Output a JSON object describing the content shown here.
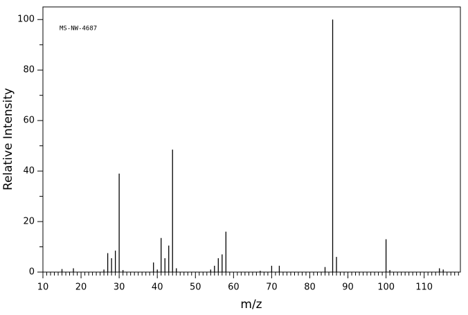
{
  "chart_data": {
    "type": "spectrum",
    "annotation": "MS-NW-4687",
    "x_label": "m/z",
    "y_label": "Relative Intensity",
    "x": [
      15,
      18,
      26,
      27,
      28,
      29,
      30,
      31,
      39,
      40,
      41,
      42,
      43,
      44,
      45,
      54,
      55,
      56,
      57,
      58,
      67,
      70,
      72,
      84,
      86,
      87,
      100,
      101,
      114,
      115
    ],
    "values": [
      1.2,
      1.5,
      1,
      7.5,
      5.5,
      8.5,
      39,
      0.8,
      3.8,
      1,
      13.5,
      5.5,
      10.5,
      48.5,
      1.5,
      1,
      2.5,
      5.5,
      7,
      16,
      0.5,
      2.5,
      2.5,
      2,
      100,
      6,
      13,
      0.8,
      1.5,
      1
    ],
    "color": "#000000",
    "xlim": [
      10,
      119.5
    ],
    "ylim": [
      0,
      105
    ],
    "xticks": [
      10,
      20,
      30,
      40,
      50,
      60,
      70,
      80,
      90,
      100,
      110
    ],
    "xminorticks": [
      11,
      12,
      13,
      14,
      15,
      16,
      17,
      18,
      19,
      21,
      22,
      23,
      24,
      25,
      26,
      27,
      28,
      29,
      31,
      32,
      33,
      34,
      35,
      36,
      37,
      38,
      39,
      41,
      42,
      43,
      44,
      45,
      46,
      47,
      48,
      49,
      51,
      52,
      53,
      54,
      55,
      56,
      57,
      58,
      59,
      61,
      62,
      63,
      64,
      65,
      66,
      67,
      68,
      69,
      71,
      72,
      73,
      74,
      75,
      76,
      77,
      78,
      79,
      81,
      82,
      83,
      84,
      85,
      86,
      87,
      88,
      89,
      91,
      92,
      93,
      94,
      95,
      96,
      97,
      98,
      99,
      101,
      102,
      103,
      104,
      105,
      106,
      107,
      108,
      109,
      111,
      112,
      113,
      114,
      115,
      116,
      117,
      118,
      119
    ],
    "yticks": [
      0,
      20,
      40,
      60,
      80,
      100
    ],
    "yminorticks": [
      10,
      30,
      50,
      70,
      90
    ]
  }
}
